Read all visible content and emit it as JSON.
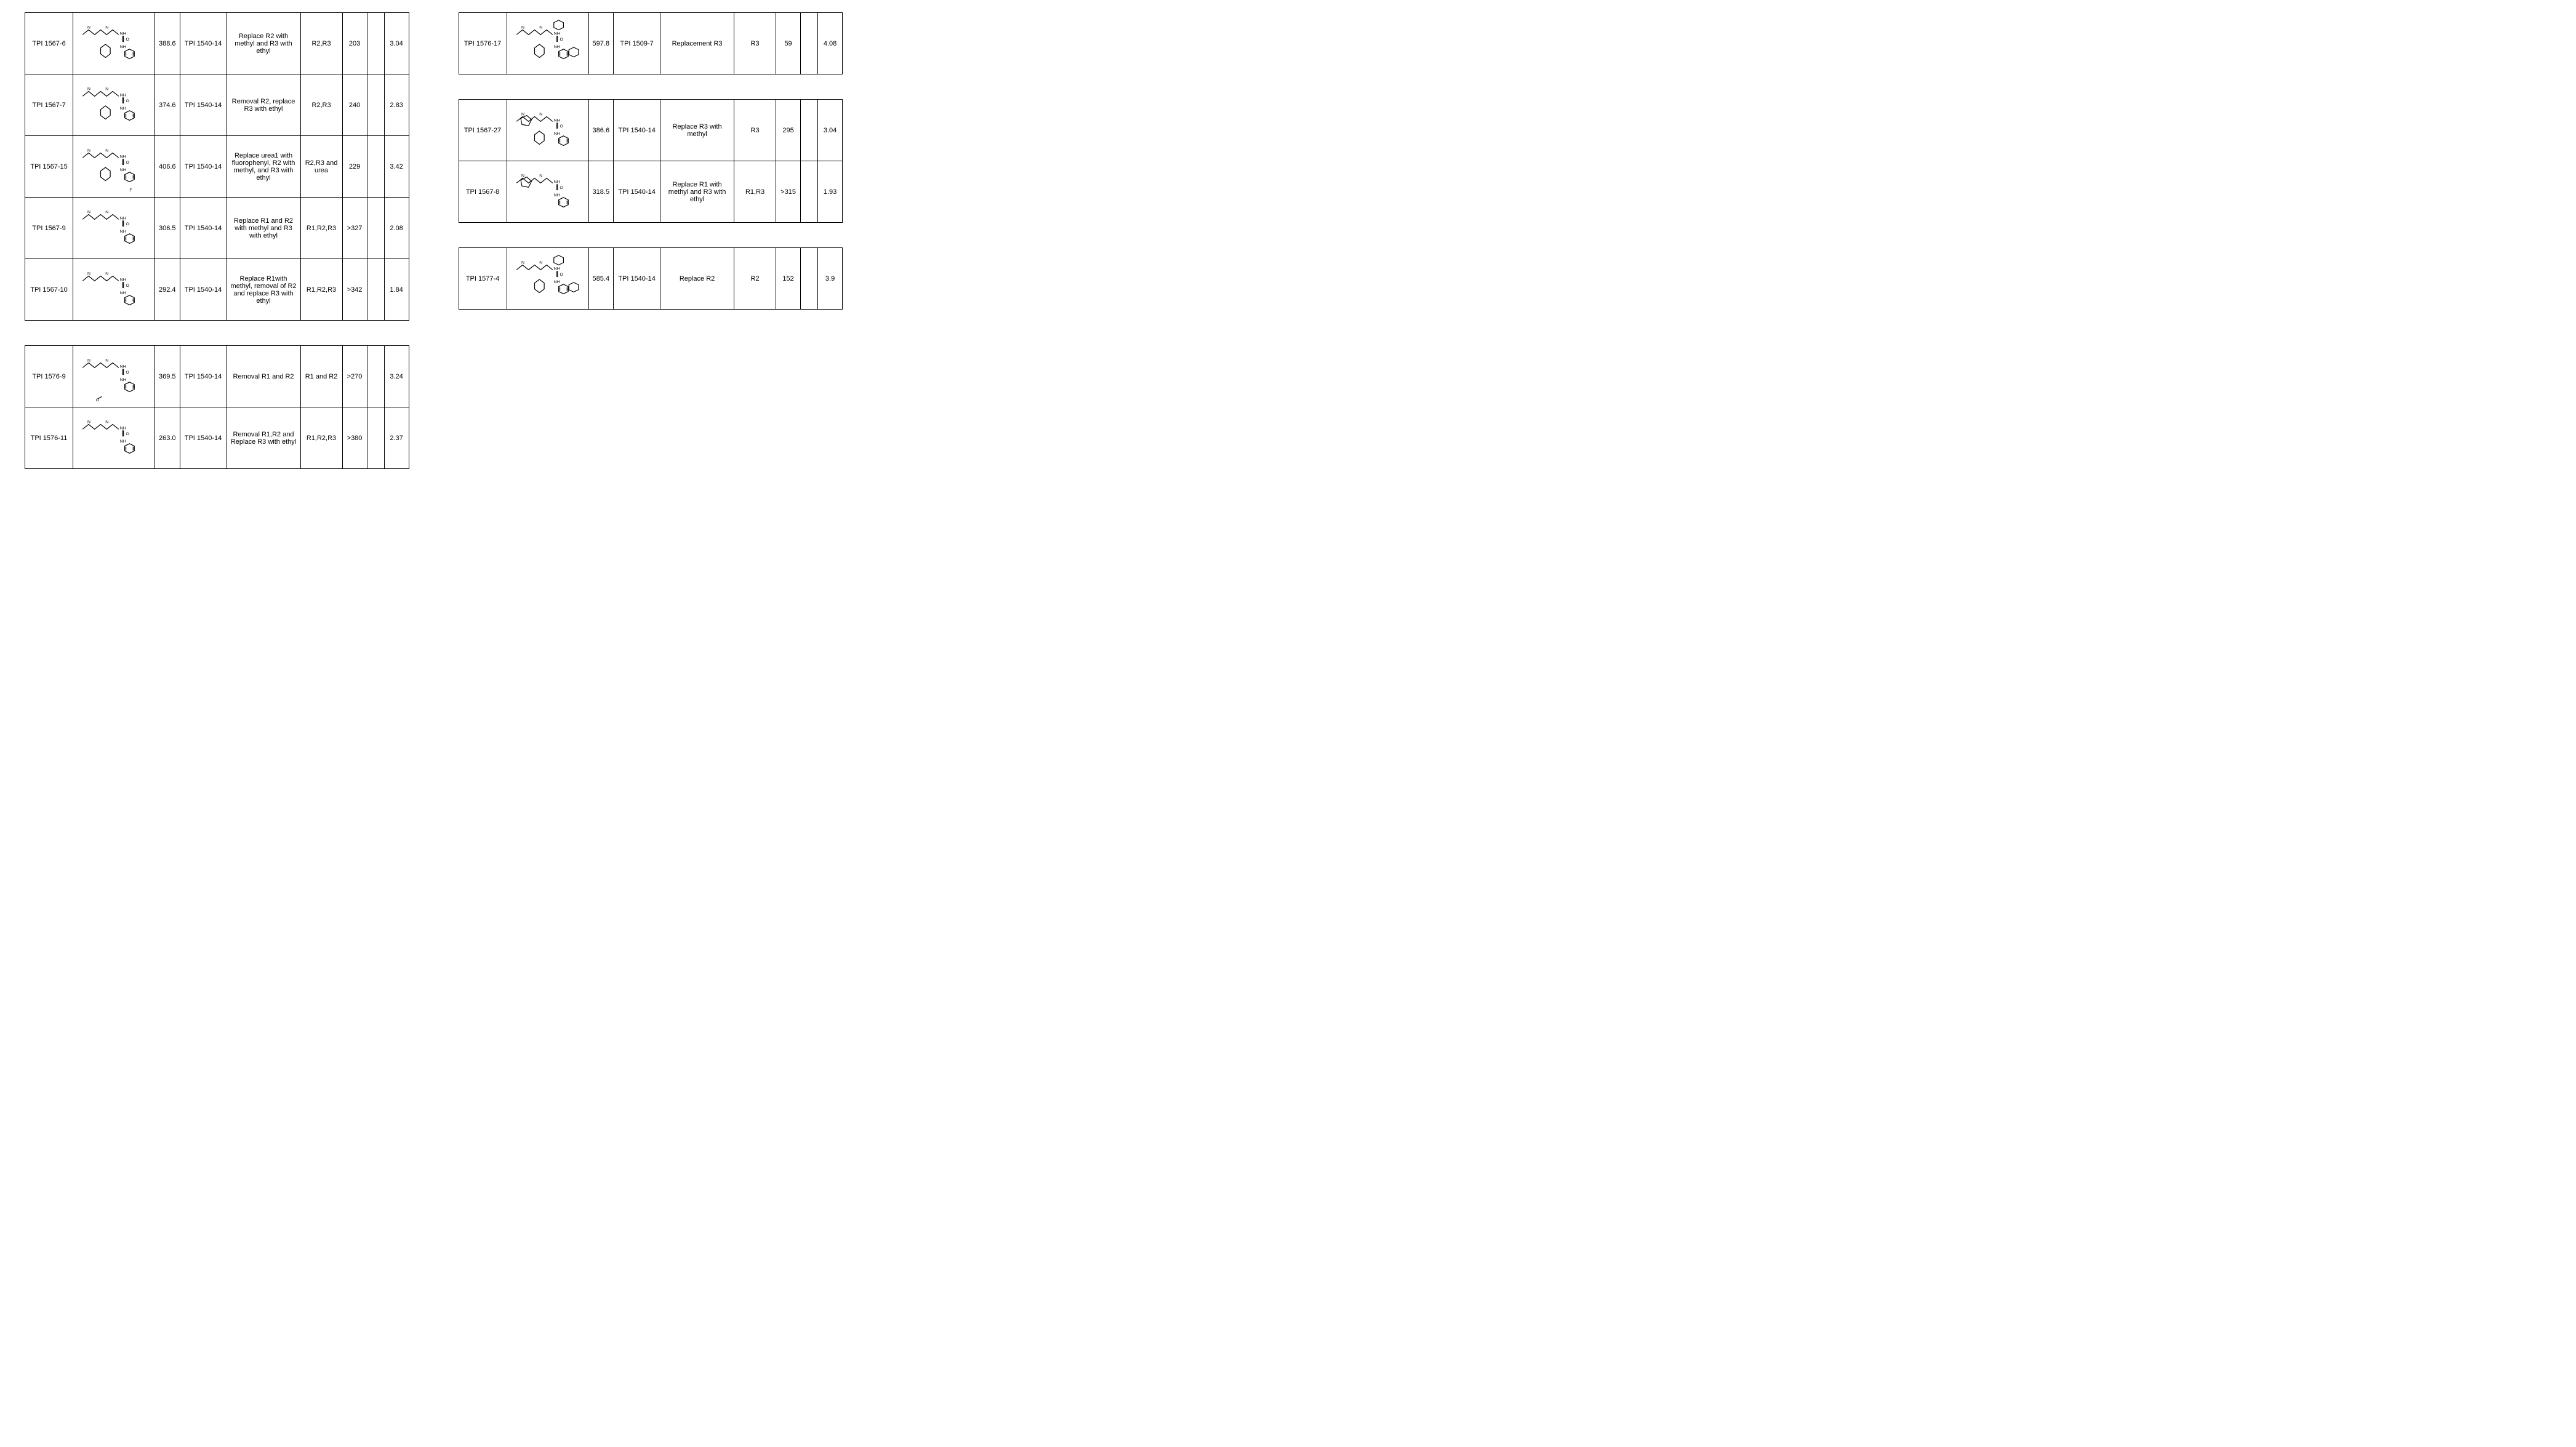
{
  "left": {
    "tables": [
      {
        "rows": [
          {
            "id": "TPI 1567-6",
            "mw": "388.6",
            "ref": "TPI 1540-14",
            "desc": "Replace R2 with methyl and R3 with ethyl",
            "rgrp": "R2,R3",
            "v1": "203",
            "blank": "",
            "v2": "3.04",
            "struct_hint": "diethylamine-chain-cyclohexyl-urea-phenyl"
          },
          {
            "id": "TPI 1567-7",
            "mw": "374.6",
            "ref": "TPI 1540-14",
            "desc": "Removal R2, replace R3 with ethyl",
            "rgrp": "R2,R3",
            "v1": "240",
            "blank": "",
            "v2": "2.83",
            "struct_hint": "diethylamine-chain-cyclohexyl-urea-phenyl"
          },
          {
            "id": "TPI 1567-15",
            "mw": "406.6",
            "ref": "TPI 1540-14",
            "desc": "Replace urea1 with fluorophenyl, R2 with methyl, and R3 with ethyl",
            "rgrp": "R2,R3 and urea",
            "v1": "229",
            "blank": "",
            "v2": "3.42",
            "struct_hint": "diethylamine-chain-cyclohexyl-urea-4-fluorophenyl"
          },
          {
            "id": "TPI 1567-9",
            "mw": "306.5",
            "ref": "TPI 1540-14",
            "desc": "Replace R1 and R2 with methyl and R3 with ethyl",
            "rgrp": "R1,R2,R3",
            "v1": ">327",
            "blank": "",
            "v2": "2.08",
            "struct_hint": "diethylamine-chain-urea-phenyl"
          },
          {
            "id": "TPI 1567-10",
            "mw": "292.4",
            "ref": "TPI 1540-14",
            "desc": "Replace R1with methyl, removal of R2 and replace R3 with ethyl",
            "rgrp": "R1,R2,R3",
            "v1": ">342",
            "blank": "",
            "v2": "1.84",
            "struct_hint": "diethylamine-chain-urea-phenyl"
          }
        ]
      },
      {
        "rows": [
          {
            "id": "TPI 1576-9",
            "mw": "369.5",
            "ref": "TPI 1540-14",
            "desc": "Removal R1 and R2",
            "rgrp": "R1 and R2",
            "v1": ">270",
            "blank": "",
            "v2": "3.24",
            "struct_hint": "Nmethyl-hexyl-p-methoxyphenyl-urea-phenyl"
          },
          {
            "id": "TPI 1576-11",
            "mw": "263.0",
            "ref": "TPI 1540-14",
            "desc": "Removal R1,R2 and Replace R3 with ethyl",
            "rgrp": "R1,R2,R3",
            "v1": ">380",
            "blank": "",
            "v2": "2.37",
            "struct_hint": "ethylamine-pentyl-urea-phenyl"
          }
        ]
      }
    ]
  },
  "right": {
    "tables": [
      {
        "rows": [
          {
            "id": "TPI 1576-17",
            "mw": "597.8",
            "ref": "TPI 1509-7",
            "desc": "Replacement R3",
            "rgrp": "R3",
            "v1": "59",
            "blank": "",
            "v2": "4.08",
            "struct_hint": "complex-cyclopentyl-cyclohexyl-phenyl-urea"
          }
        ]
      },
      {
        "rows": [
          {
            "id": "TPI 1567-27",
            "mw": "386.6",
            "ref": "TPI 1540-14",
            "desc": "Replace R3 with methyl",
            "rgrp": "R3",
            "v1": "295",
            "blank": "",
            "v2": "3.04",
            "struct_hint": "N-methylpyrrolidine-chain-cyclohexyl-urea-phenyl"
          },
          {
            "id": "TPI 1567-8",
            "mw": "318.5",
            "ref": "TPI 1540-14",
            "desc": "Replace R1 with methyl and R3 with ethyl",
            "rgrp": "R1,R3",
            "v1": ">315",
            "blank": "",
            "v2": "1.93",
            "struct_hint": "ethyl-pyrrolidine-chain-urea-phenyl"
          }
        ]
      },
      {
        "rows": [
          {
            "id": "TPI 1577-4",
            "mw": "585.4",
            "ref": "TPI 1540-14",
            "desc": "Replace R2",
            "rgrp": "R2",
            "v1": "152",
            "blank": "",
            "v2": "3.9",
            "struct_hint": "complex-phenyl-cyclohexyl-benzyl"
          }
        ]
      }
    ]
  }
}
